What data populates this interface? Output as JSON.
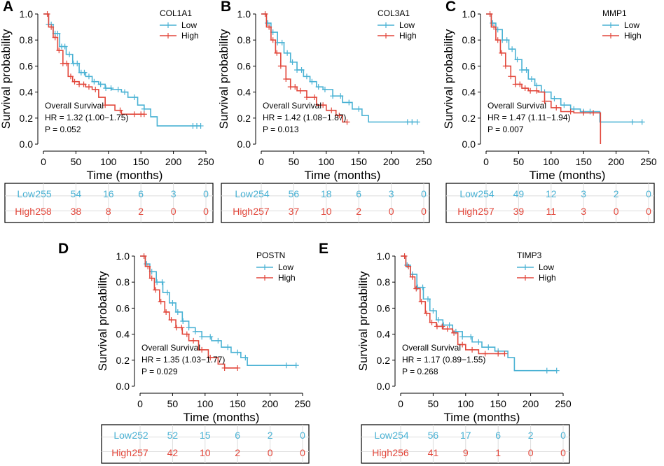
{
  "figure": {
    "colors": {
      "low": "#4ab2d4",
      "high": "#e2473b",
      "axis": "#000000",
      "grid": "#dddddd"
    },
    "x_axis_label": "Time (months)",
    "y_axis_label": "Survival probability",
    "stats_title": "Overall Survival"
  },
  "chart_data": [
    {
      "panel": "A",
      "type": "line",
      "title": "COL1A1",
      "xlabel": "Time (months)",
      "ylabel": "Survival probability",
      "xlim": [
        0,
        250
      ],
      "ylim": [
        0,
        1.0
      ],
      "xticks": [
        0,
        50,
        100,
        150,
        200,
        250
      ],
      "yticks": [
        0.0,
        0.2,
        0.4,
        0.6,
        0.8,
        1.0
      ],
      "legend": [
        "Low",
        "High"
      ],
      "annotation": [
        "Overall Survival",
        "HR = 1.32 (1.00−1.75)",
        "P = 0.052"
      ],
      "series": [
        {
          "name": "Low",
          "x": [
            0,
            8,
            15,
            25,
            35,
            45,
            55,
            65,
            75,
            85,
            95,
            105,
            120,
            130,
            145,
            155,
            165,
            175,
            200,
            235,
            242
          ],
          "y": [
            1.0,
            0.92,
            0.85,
            0.75,
            0.69,
            0.62,
            0.55,
            0.52,
            0.48,
            0.46,
            0.43,
            0.42,
            0.4,
            0.36,
            0.3,
            0.27,
            0.21,
            0.14,
            0.14,
            0.14,
            0.14
          ],
          "censor_x": [
            8,
            12,
            18,
            22,
            28,
            33,
            40,
            46,
            52,
            58,
            63,
            70,
            78,
            88,
            96,
            104,
            115,
            125,
            140,
            155,
            230,
            236,
            242
          ]
        },
        {
          "name": "High",
          "x": [
            0,
            8,
            15,
            22,
            30,
            38,
            45,
            55,
            65,
            75,
            85,
            95,
            110,
            120,
            140,
            155
          ],
          "y": [
            1.0,
            0.9,
            0.82,
            0.72,
            0.62,
            0.52,
            0.48,
            0.46,
            0.44,
            0.42,
            0.36,
            0.3,
            0.26,
            0.23,
            0.23,
            0.23
          ],
          "censor_x": [
            6,
            12,
            18,
            24,
            30,
            36,
            42,
            48,
            55,
            62,
            70,
            80,
            95,
            118,
            140,
            150,
            155
          ]
        }
      ],
      "risk_table": {
        "rows": [
          {
            "group": "Low",
            "values": [
              255,
              54,
              16,
              6,
              3,
              0
            ]
          },
          {
            "group": "High",
            "values": [
              258,
              38,
              8,
              2,
              0,
              0
            ]
          }
        ]
      }
    },
    {
      "panel": "B",
      "type": "line",
      "title": "COL3A1",
      "xlabel": "Time (months)",
      "ylabel": "Survival probability",
      "xlim": [
        0,
        250
      ],
      "ylim": [
        0,
        1.0
      ],
      "xticks": [
        0,
        50,
        100,
        150,
        200,
        250
      ],
      "yticks": [
        0.0,
        0.2,
        0.4,
        0.6,
        0.8,
        1.0
      ],
      "legend": [
        "Low",
        "High"
      ],
      "annotation": [
        "Overall Survival",
        "HR = 1.42 (1.08−1.87)",
        "P = 0.013"
      ],
      "series": [
        {
          "name": "Low",
          "x": [
            0,
            8,
            15,
            25,
            35,
            45,
            55,
            65,
            75,
            85,
            95,
            110,
            125,
            140,
            155,
            165,
            200,
            230,
            240
          ],
          "y": [
            1.0,
            0.93,
            0.86,
            0.78,
            0.7,
            0.63,
            0.57,
            0.52,
            0.48,
            0.44,
            0.42,
            0.37,
            0.32,
            0.27,
            0.22,
            0.17,
            0.17,
            0.17,
            0.17
          ],
          "censor_x": [
            10,
            18,
            25,
            32,
            40,
            48,
            55,
            62,
            70,
            78,
            88,
            98,
            110,
            122,
            135,
            150,
            225,
            232,
            240
          ]
        },
        {
          "name": "High",
          "x": [
            0,
            8,
            15,
            22,
            30,
            38,
            45,
            55,
            70,
            85,
            100,
            115,
            125,
            132
          ],
          "y": [
            1.0,
            0.9,
            0.8,
            0.7,
            0.6,
            0.5,
            0.44,
            0.41,
            0.36,
            0.3,
            0.26,
            0.22,
            0.17,
            0.17
          ],
          "censor_x": [
            6,
            12,
            18,
            24,
            30,
            38,
            45,
            52,
            60,
            70,
            82,
            95,
            108,
            120,
            132
          ]
        }
      ],
      "risk_table": {
        "rows": [
          {
            "group": "Low",
            "values": [
              254,
              56,
              18,
              6,
              3,
              0
            ]
          },
          {
            "group": "High",
            "values": [
              257,
              37,
              10,
              2,
              0,
              0
            ]
          }
        ]
      }
    },
    {
      "panel": "C",
      "type": "line",
      "title": "MMP1",
      "xlabel": "Time (months)",
      "ylabel": "Survival probability",
      "xlim": [
        0,
        250
      ],
      "ylim": [
        0,
        1.0
      ],
      "xticks": [
        0,
        50,
        100,
        150,
        200,
        250
      ],
      "yticks": [
        0.0,
        0.2,
        0.4,
        0.6,
        0.8,
        1.0
      ],
      "legend": [
        "Low",
        "High"
      ],
      "annotation": [
        "Overall Survival",
        "HR = 1.47 (1.11−1.94)",
        "P = 0.007"
      ],
      "series": [
        {
          "name": "Low",
          "x": [
            0,
            8,
            15,
            25,
            35,
            45,
            55,
            65,
            75,
            85,
            100,
            115,
            130,
            145,
            160,
            175,
            200,
            230,
            240
          ],
          "y": [
            1.0,
            0.93,
            0.88,
            0.8,
            0.73,
            0.65,
            0.57,
            0.5,
            0.45,
            0.4,
            0.35,
            0.3,
            0.27,
            0.25,
            0.25,
            0.17,
            0.17,
            0.17,
            0.17
          ],
          "censor_x": [
            10,
            18,
            25,
            32,
            40,
            48,
            55,
            62,
            70,
            78,
            90,
            105,
            120,
            135,
            150,
            160,
            225,
            240
          ]
        },
        {
          "name": "High",
          "x": [
            0,
            8,
            15,
            22,
            30,
            38,
            45,
            55,
            65,
            80,
            90,
            100,
            115,
            135,
            150,
            165,
            175,
            176
          ],
          "y": [
            1.0,
            0.9,
            0.8,
            0.7,
            0.6,
            0.52,
            0.46,
            0.43,
            0.41,
            0.4,
            0.33,
            0.28,
            0.25,
            0.24,
            0.24,
            0.24,
            0.24,
            0.0
          ],
          "censor_x": [
            6,
            12,
            18,
            24,
            30,
            38,
            45,
            52,
            60,
            68,
            78,
            90,
            108,
            130,
            150,
            165
          ]
        }
      ],
      "risk_table": {
        "rows": [
          {
            "group": "Low",
            "values": [
              254,
              49,
              12,
              3,
              2,
              0
            ]
          },
          {
            "group": "High",
            "values": [
              257,
              39,
              11,
              3,
              0,
              0
            ]
          }
        ]
      }
    },
    {
      "panel": "D",
      "type": "line",
      "title": "POSTN",
      "xlabel": "Time (months)",
      "ylabel": "Survival probability",
      "xlim": [
        0,
        250
      ],
      "ylim": [
        0,
        1.0
      ],
      "xticks": [
        0,
        50,
        100,
        150,
        200,
        250
      ],
      "yticks": [
        0.0,
        0.2,
        0.4,
        0.6,
        0.8,
        1.0
      ],
      "legend": [
        "Low",
        "High"
      ],
      "annotation": [
        "Overall Survival",
        "HR = 1.35 (1.03−1.77)",
        "P = 0.029"
      ],
      "series": [
        {
          "name": "Low",
          "x": [
            0,
            8,
            15,
            25,
            35,
            45,
            55,
            65,
            75,
            85,
            95,
            110,
            125,
            140,
            155,
            165,
            200,
            240
          ],
          "y": [
            1.0,
            0.94,
            0.88,
            0.8,
            0.72,
            0.64,
            0.57,
            0.5,
            0.45,
            0.42,
            0.38,
            0.35,
            0.3,
            0.26,
            0.22,
            0.16,
            0.16,
            0.16
          ],
          "censor_x": [
            10,
            18,
            26,
            34,
            42,
            50,
            58,
            66,
            75,
            85,
            95,
            108,
            120,
            135,
            150,
            162,
            225,
            240
          ]
        },
        {
          "name": "High",
          "x": [
            0,
            8,
            15,
            22,
            30,
            38,
            45,
            55,
            65,
            75,
            90,
            105,
            120,
            130,
            150
          ],
          "y": [
            1.0,
            0.92,
            0.83,
            0.74,
            0.65,
            0.57,
            0.51,
            0.45,
            0.4,
            0.35,
            0.28,
            0.22,
            0.17,
            0.14,
            0.14
          ],
          "censor_x": [
            6,
            12,
            18,
            24,
            32,
            40,
            48,
            56,
            64,
            72,
            82,
            95,
            108,
            130,
            150
          ]
        }
      ],
      "risk_table": {
        "rows": [
          {
            "group": "Low",
            "values": [
              252,
              52,
              15,
              6,
              2,
              0
            ]
          },
          {
            "group": "High",
            "values": [
              257,
              42,
              10,
              2,
              0,
              0
            ]
          }
        ]
      }
    },
    {
      "panel": "E",
      "type": "line",
      "title": "TIMP3",
      "xlabel": "Time (months)",
      "ylabel": "Survival probability",
      "xlim": [
        0,
        250
      ],
      "ylim": [
        0,
        1.0
      ],
      "xticks": [
        0,
        50,
        100,
        150,
        200,
        250
      ],
      "yticks": [
        0.0,
        0.2,
        0.4,
        0.6,
        0.8,
        1.0
      ],
      "legend": [
        "Low",
        "High"
      ],
      "annotation": [
        "Overall Survival",
        "HR = 1.17 (0.89−1.55)",
        "P = 0.268"
      ],
      "series": [
        {
          "name": "Low",
          "x": [
            0,
            8,
            15,
            25,
            35,
            45,
            55,
            65,
            80,
            95,
            110,
            125,
            145,
            165,
            175,
            200,
            240
          ],
          "y": [
            1.0,
            0.93,
            0.86,
            0.76,
            0.67,
            0.58,
            0.51,
            0.47,
            0.42,
            0.38,
            0.34,
            0.3,
            0.27,
            0.22,
            0.12,
            0.12,
            0.12
          ],
          "censor_x": [
            10,
            18,
            26,
            34,
            42,
            50,
            58,
            66,
            75,
            85,
            95,
            108,
            120,
            135,
            150,
            225,
            240
          ]
        },
        {
          "name": "High",
          "x": [
            0,
            8,
            15,
            22,
            30,
            38,
            45,
            55,
            65,
            80,
            88,
            100,
            120,
            140,
            160
          ],
          "y": [
            1.0,
            0.92,
            0.84,
            0.75,
            0.65,
            0.56,
            0.49,
            0.46,
            0.44,
            0.41,
            0.32,
            0.28,
            0.25,
            0.25,
            0.25
          ],
          "censor_x": [
            6,
            12,
            18,
            24,
            32,
            40,
            48,
            56,
            64,
            72,
            82,
            95,
            110,
            130,
            150,
            160
          ]
        }
      ],
      "risk_table": {
        "rows": [
          {
            "group": "Low",
            "values": [
              254,
              56,
              17,
              6,
              2,
              0
            ]
          },
          {
            "group": "High",
            "values": [
              256,
              41,
              9,
              1,
              0,
              0
            ]
          }
        ]
      }
    }
  ]
}
